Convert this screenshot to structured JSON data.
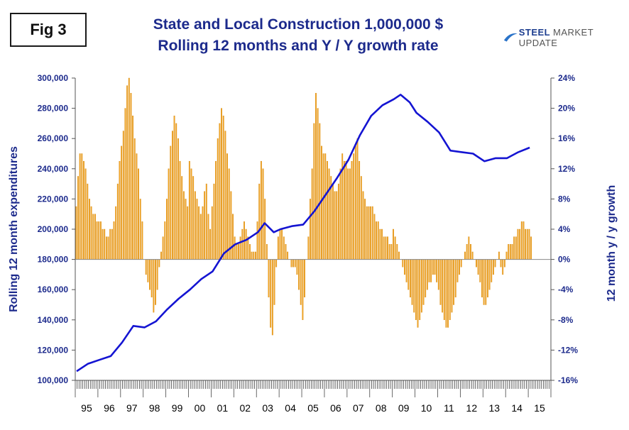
{
  "fig_label": "Fig 3",
  "title": "State and Local Construction 1,000,000 $",
  "subtitle": "Rolling 12 months and Y / Y growth rate",
  "logo": {
    "brand": "STEEL",
    "rest": "MARKET UPDATE",
    "icon": "swoosh-icon"
  },
  "colors": {
    "line": "#1414d2",
    "bars": "#f5a623",
    "bar_edge": "#d4880e",
    "axis_text": "#1c2a8c"
  },
  "chart_data": {
    "type": "bar+line",
    "ylabel_left": "Rolling 12 month expenditures",
    "ylabel_right": "12 month y / y growth",
    "y_left_ticks": [
      "100,000",
      "120,000",
      "140,000",
      "160,000",
      "180,000",
      "200,000",
      "220,000",
      "240,000",
      "260,000",
      "280,000",
      "300,000"
    ],
    "y_right_ticks": [
      "-16%",
      "-12%",
      "-8%",
      "-4%",
      "0%",
      "4%",
      "8%",
      "12%",
      "16%",
      "20%",
      "24%"
    ],
    "ylim_left": [
      100000,
      300000
    ],
    "ylim_right": [
      -16,
      24
    ],
    "x_tick_labels": [
      "95",
      "96",
      "97",
      "98",
      "99",
      "00",
      "01",
      "02",
      "03",
      "04",
      "05",
      "06",
      "07",
      "08",
      "09",
      "10",
      "11",
      "12",
      "13",
      "14",
      "15"
    ],
    "series": [
      {
        "name": "Rolling 12 month expenditures",
        "kind": "line",
        "axis": "left",
        "points": [
          [
            "95",
            106000
          ],
          [
            "95.5",
            111000
          ],
          [
            "96",
            113500
          ],
          [
            "96.5",
            116000
          ],
          [
            "97",
            125000
          ],
          [
            "97.5",
            136000
          ],
          [
            "98",
            135000
          ],
          [
            "98.5",
            139000
          ],
          [
            "99",
            147000
          ],
          [
            "99.5",
            154000
          ],
          [
            "00",
            160000
          ],
          [
            "00.5",
            167000
          ],
          [
            "01",
            172000
          ],
          [
            "01.5",
            184000
          ],
          [
            "02",
            190000
          ],
          [
            "02.5",
            193000
          ],
          [
            "03",
            198000
          ],
          [
            "03.3",
            204000
          ],
          [
            "03.7",
            198000
          ],
          [
            "04",
            200000
          ],
          [
            "04.5",
            202000
          ],
          [
            "05",
            203000
          ],
          [
            "05.5",
            212000
          ],
          [
            "06",
            223000
          ],
          [
            "06.5",
            234000
          ],
          [
            "07",
            246000
          ],
          [
            "07.5",
            262000
          ],
          [
            "08",
            275000
          ],
          [
            "08.5",
            282000
          ],
          [
            "09",
            286000
          ],
          [
            "09.3",
            289000
          ],
          [
            "09.7",
            284000
          ],
          [
            "10",
            277000
          ],
          [
            "10.5",
            271000
          ],
          [
            "11",
            264000
          ],
          [
            "11.5",
            252000
          ],
          [
            "12",
            251000
          ],
          [
            "12.5",
            250000
          ],
          [
            "13",
            245000
          ],
          [
            "13.5",
            247000
          ],
          [
            "14",
            247000
          ],
          [
            "14.5",
            251000
          ],
          [
            "15",
            254000
          ]
        ]
      },
      {
        "name": "12 month y / y growth",
        "kind": "bar",
        "axis": "right",
        "start_year": 1995,
        "values_by_year": {
          "1995": [
            7,
            11,
            14,
            14,
            13,
            12,
            10,
            8,
            7,
            6,
            6,
            5
          ],
          "1996": [
            5,
            5,
            4,
            4,
            3,
            3,
            4,
            4,
            5,
            7,
            10,
            13
          ],
          "1997": [
            15,
            17,
            20,
            23,
            24,
            22,
            19,
            16,
            14,
            12,
            8,
            5
          ],
          "1998": [
            0,
            -2,
            -3,
            -4,
            -5,
            -7,
            -6,
            -4,
            -1,
            1,
            3,
            5
          ],
          "1999": [
            8,
            12,
            15,
            17,
            19,
            18,
            16,
            13,
            11,
            9,
            8,
            7
          ],
          "2000": [
            13,
            12,
            11,
            9,
            8,
            7,
            6,
            7,
            9,
            10,
            6,
            4
          ],
          "2001": [
            7,
            10,
            13,
            16,
            18,
            20,
            19,
            17,
            14,
            12,
            9,
            6
          ],
          "2002": [
            3,
            2,
            2,
            3,
            4,
            5,
            4,
            3,
            2,
            1,
            1,
            1
          ],
          "2003": [
            5,
            10,
            13,
            12,
            8,
            2,
            -5,
            -9,
            -10,
            -6,
            -1,
            3
          ],
          "2004": [
            4,
            4,
            3,
            2,
            1,
            0,
            -1,
            -1,
            -1,
            -2,
            -4,
            -6
          ],
          "2005": [
            -8,
            -5,
            0,
            3,
            8,
            12,
            18,
            22,
            20,
            18,
            15,
            14
          ],
          "2006": [
            14,
            13,
            12,
            11,
            10,
            9,
            9,
            10,
            12,
            14,
            13,
            13
          ],
          "2007": [
            12,
            12,
            13,
            14,
            15,
            16,
            13,
            11,
            9,
            8,
            7,
            7
          ],
          "2008": [
            7,
            7,
            6,
            5,
            5,
            4,
            4,
            3,
            3,
            3,
            2,
            2
          ],
          "2009": [
            4,
            3,
            2,
            1,
            0,
            -1,
            -2,
            -3,
            -4,
            -5,
            -6,
            -7
          ],
          "2010": [
            -8,
            -9,
            -8,
            -7,
            -6,
            -5,
            -4,
            -3,
            -3,
            -2,
            -2,
            -3
          ],
          "2011": [
            -4,
            -6,
            -7,
            -8,
            -9,
            -9,
            -8,
            -7,
            -6,
            -5,
            -3,
            -2
          ],
          "2012": [
            -1,
            0,
            1,
            2,
            3,
            2,
            1,
            0,
            -1,
            -2,
            -3,
            -5
          ],
          "2013": [
            -6,
            -6,
            -5,
            -4,
            -3,
            -2,
            -1,
            0,
            1,
            -1,
            -2,
            -1
          ],
          "2014": [
            1,
            2,
            2,
            2,
            3,
            3,
            4,
            4,
            5,
            5,
            4,
            4
          ],
          "2015": [
            4,
            3
          ]
        }
      }
    ],
    "grid": false,
    "legend": "none"
  }
}
